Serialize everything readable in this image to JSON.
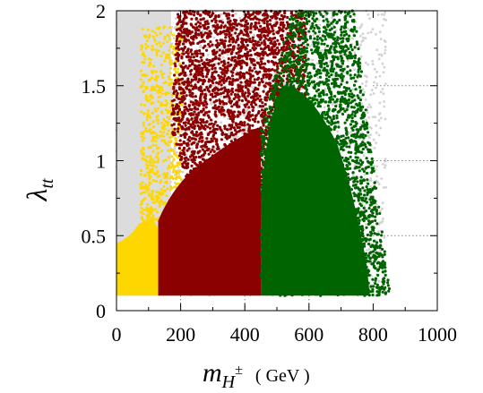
{
  "chart_data": {
    "type": "scatter",
    "xlim": [
      0,
      1000
    ],
    "ylim": [
      0,
      2
    ],
    "xticks": [
      0,
      200,
      400,
      600,
      800,
      1000
    ],
    "xtick_labels": [
      "0",
      "200",
      "400",
      "600",
      "800",
      "1000"
    ],
    "yticks": [
      0,
      0.5,
      1,
      1.5,
      2
    ],
    "ytick_labels": [
      "0",
      "0.5",
      "1",
      "1.5",
      "2"
    ],
    "xlabel": {
      "main": "m",
      "sub": "H",
      "sup": "±",
      "unit": "( GeV )"
    },
    "ylabel": {
      "main": "λ",
      "sub": "tt"
    },
    "grid": "dotted horizontal reference lines at λ = 0.5, 1, 1.5 (right side)",
    "series": [
      {
        "color": "#d3d3d3",
        "density": "sparse",
        "x_range": [
          0,
          840
        ],
        "y_range": [
          0.1,
          2.0
        ]
      },
      {
        "color": "#ffd700",
        "density": "dense",
        "x_range": [
          0,
          130
        ],
        "y_range": [
          0.1,
          0.6
        ]
      },
      {
        "color": "#ffd700",
        "density": "sparse",
        "x_range": [
          75,
          205
        ],
        "y_range": [
          0.6,
          1.9
        ]
      },
      {
        "color": "#8b0000",
        "density": "dense",
        "x_range": [
          130,
          450
        ],
        "y_range": [
          0.1,
          1.4
        ]
      },
      {
        "color": "#8b0000",
        "density": "sparse",
        "x_range": [
          150,
          590
        ],
        "y_range": [
          0.6,
          2.0
        ]
      },
      {
        "color": "#006400",
        "density": "dense",
        "x_range": [
          450,
          770
        ],
        "y_range": [
          0.1,
          1.4
        ]
      },
      {
        "color": "#006400",
        "density": "sparse",
        "x_range": [
          440,
          860
        ],
        "y_range": [
          0.1,
          2.0
        ]
      }
    ]
  }
}
